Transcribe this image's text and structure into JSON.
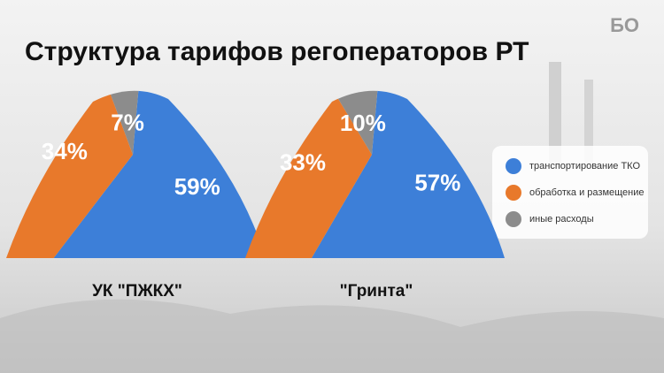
{
  "title": "Структура тарифов регоператоров РТ",
  "brand": "БО",
  "chart_data": [
    {
      "type": "pie",
      "title": "УК \"ПЖКХ\"",
      "categories": [
        "транспортирование ТКО",
        "обработка и размещение",
        "иные расходы"
      ],
      "values": [
        59,
        34,
        7
      ],
      "value_labels": [
        "59%",
        "34%",
        "7%"
      ],
      "colors": [
        "#3d7fd8",
        "#e8792b",
        "#8c8c8c"
      ]
    },
    {
      "type": "pie",
      "title": "\"Гринта\"",
      "categories": [
        "транспортирование ТКО",
        "обработка и размещение",
        "иные расходы"
      ],
      "values": [
        57,
        33,
        10
      ],
      "value_labels": [
        "57%",
        "33%",
        "10%"
      ],
      "colors": [
        "#3d7fd8",
        "#e8792b",
        "#8c8c8c"
      ]
    }
  ]
}
